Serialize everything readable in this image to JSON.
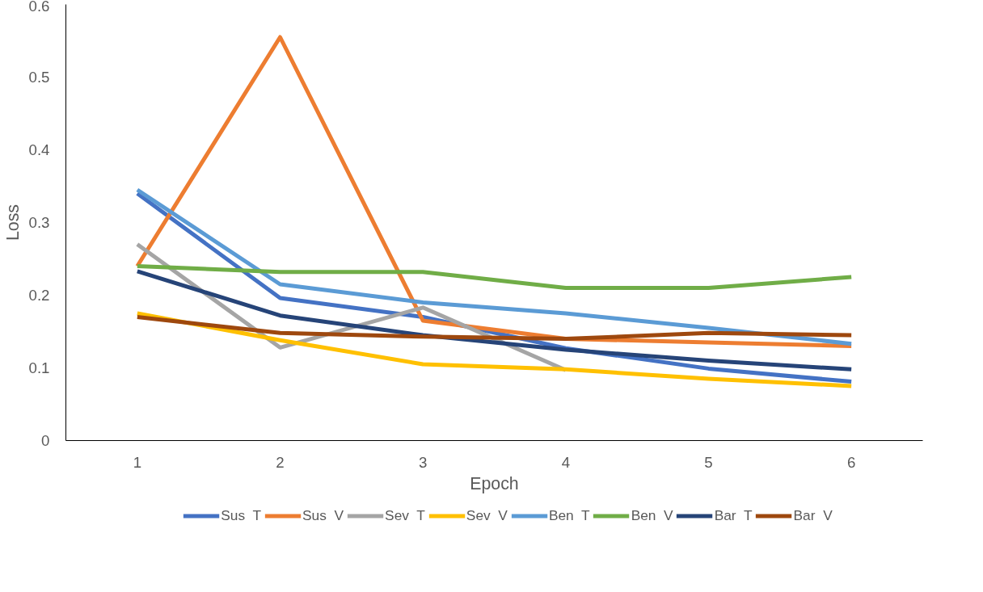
{
  "chart_data": {
    "type": "line",
    "xlabel": "Epoch",
    "ylabel": "Loss",
    "categories": [
      "1",
      "2",
      "3",
      "4",
      "5",
      "6"
    ],
    "ylim": [
      0,
      0.6
    ],
    "yticks": [
      0,
      0.1,
      0.2,
      0.3,
      0.4,
      0.5,
      0.6
    ],
    "grid": false,
    "legend": "bottom",
    "marker": "none",
    "line_style": "solid",
    "series": [
      {
        "name": "Sus  T",
        "color": "#4472c4",
        "values": [
          0.34,
          0.196,
          0.17,
          0.127,
          0.099,
          0.081
        ]
      },
      {
        "name": "Sus  V",
        "color": "#ed7d31",
        "values": [
          0.24,
          0.555,
          0.165,
          0.14,
          0.135,
          0.13
        ]
      },
      {
        "name": "Sev  T",
        "color": "#a5a5a5",
        "values": [
          0.27,
          0.128,
          0.183,
          0.097,
          null,
          null
        ]
      },
      {
        "name": "Sev  V",
        "color": "#ffc000",
        "values": [
          0.175,
          0.138,
          0.105,
          0.098,
          0.085,
          0.075
        ]
      },
      {
        "name": "Ben  T",
        "color": "#5b9bd5",
        "values": [
          0.345,
          0.215,
          0.19,
          0.175,
          0.155,
          0.133
        ]
      },
      {
        "name": "Ben  V",
        "color": "#70ad47",
        "values": [
          0.24,
          0.232,
          0.232,
          0.21,
          0.21,
          0.225
        ]
      },
      {
        "name": "Bar  T",
        "color": "#264478",
        "values": [
          0.233,
          0.172,
          0.145,
          0.125,
          0.11,
          0.098
        ]
      },
      {
        "name": "Bar  V",
        "color": "#9e480e",
        "values": [
          0.17,
          0.148,
          0.143,
          0.14,
          0.148,
          0.145
        ]
      }
    ]
  }
}
